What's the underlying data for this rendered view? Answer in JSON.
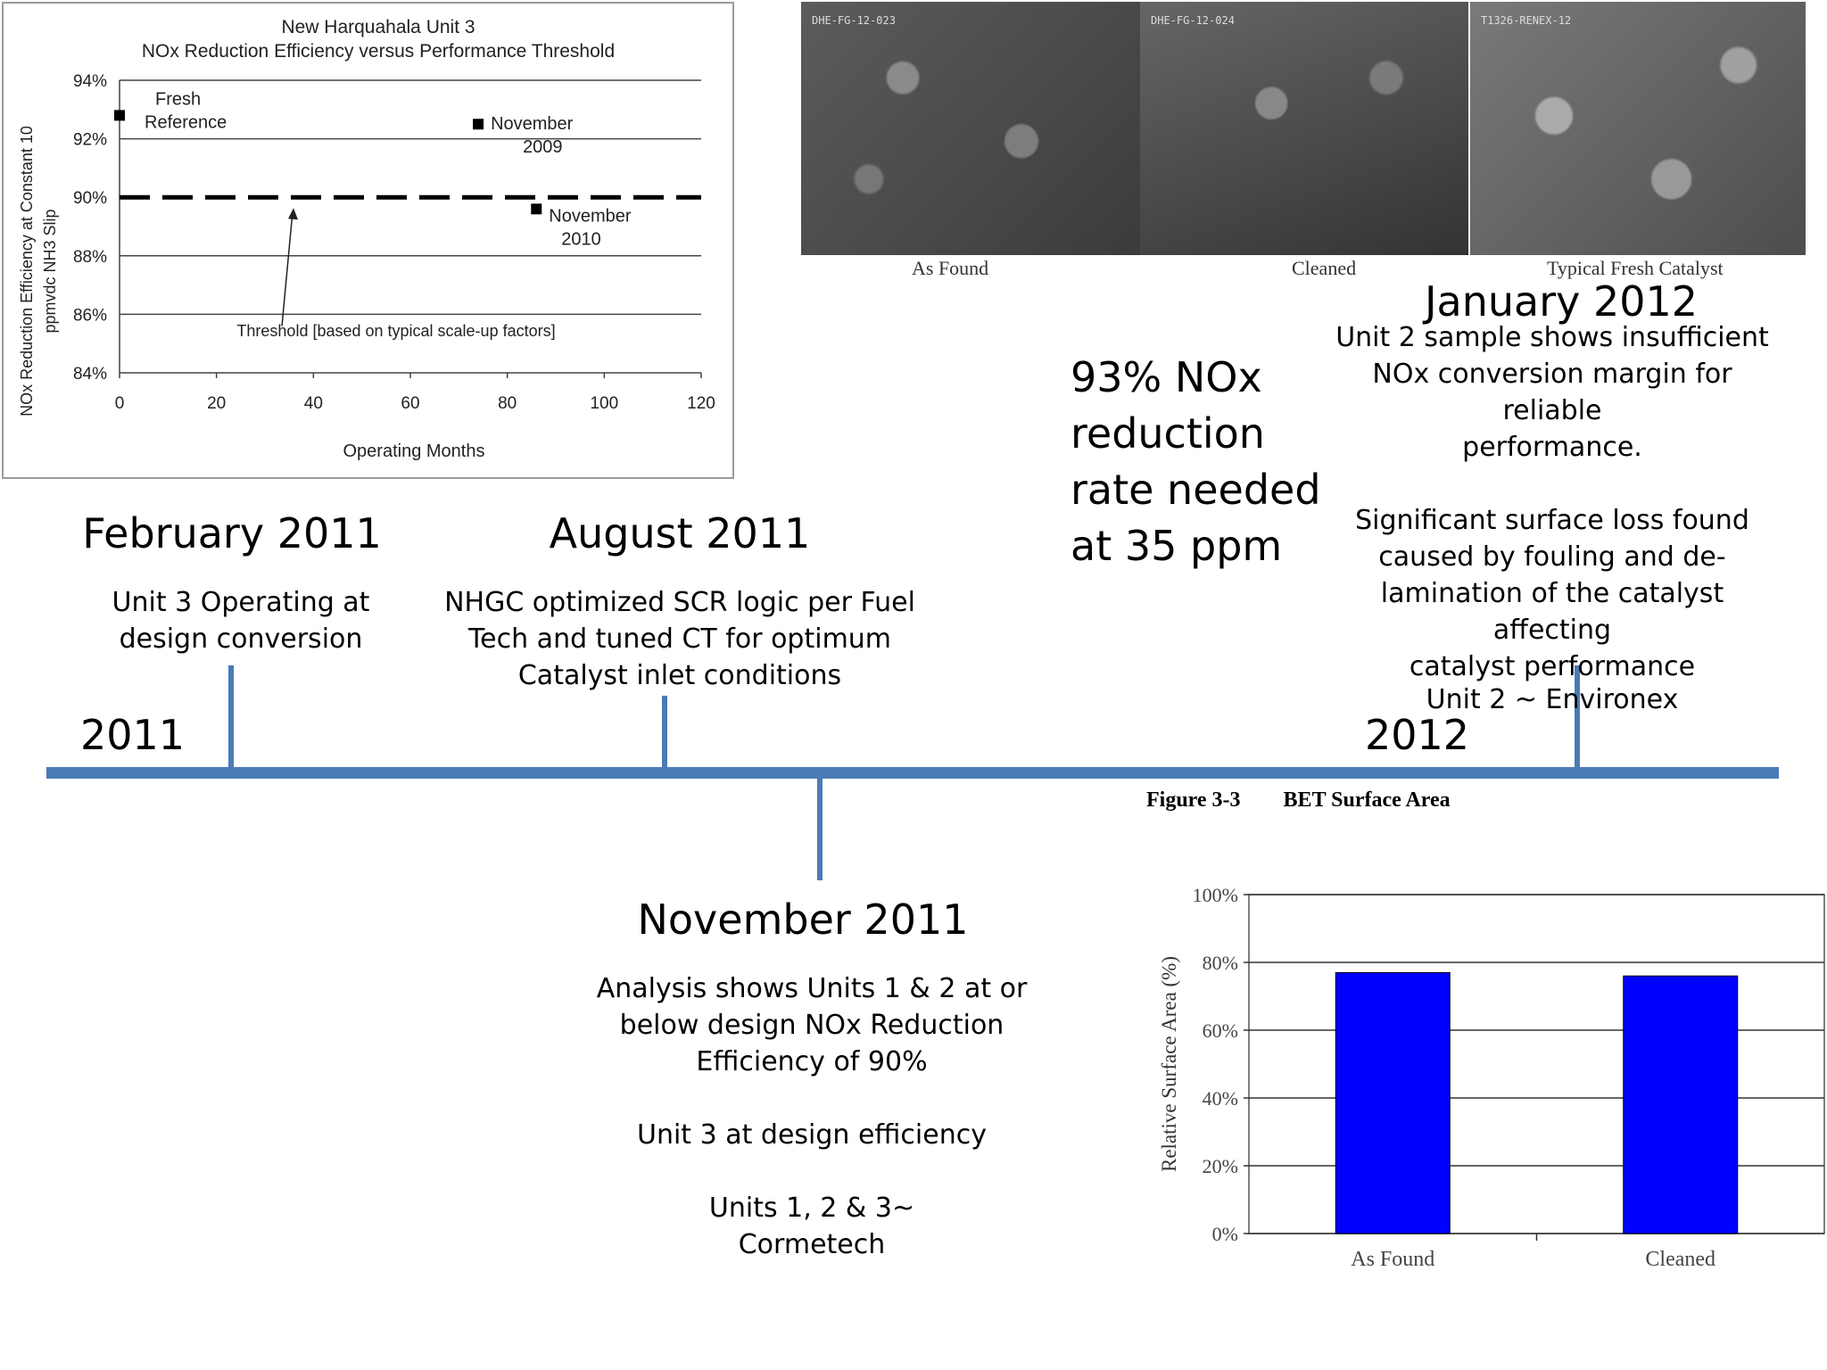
{
  "timeline": {
    "year_2011": "2011",
    "year_2012": "2012",
    "events": [
      {
        "date": "February 2011",
        "lines": [
          "Unit 3 Operating at",
          "design conversion"
        ]
      },
      {
        "date": "August 2011",
        "lines": [
          "NHGC optimized SCR logic per Fuel",
          "Tech and tuned CT for optimum",
          "Catalyst inlet conditions"
        ]
      },
      {
        "date": "November 2011",
        "lines": [
          "Analysis shows Units 1 & 2 at or",
          "below design NOx Reduction",
          "Efficiency of 90%",
          "",
          "Unit 3 at design efficiency",
          "",
          "Units 1, 2 & 3~",
          "Cormetech"
        ]
      },
      {
        "date": "January 2012",
        "lines": [
          "Unit 2 sample shows insufficient",
          "NOx conversion margin for reliable",
          "performance.",
          "",
          "Significant surface loss found",
          "caused by fouling and de-",
          "lamination of the catalyst affecting",
          "catalyst performance",
          "Unit 2 ~ Environex"
        ]
      }
    ]
  },
  "callout": {
    "lines": [
      "93% NOx",
      "reduction",
      "rate needed",
      "at 35 ppm"
    ]
  },
  "sem": {
    "labels": [
      "As Found",
      "Cleaned",
      "Typical Fresh Catalyst"
    ],
    "codes": [
      "DHE-FG-12-023",
      "DHE-FG-12-024",
      "T1326-RENEX-12"
    ]
  },
  "chart_data": [
    {
      "type": "scatter",
      "title": "New Harquahala Unit 3",
      "subtitle": "NOx Reduction Efficiency versus Performance Threshold",
      "xlabel": "Operating Months",
      "ylabel": [
        "NOx Reduction Efficiency at Constant 10",
        "ppmvdc NH3 Slip"
      ],
      "xlim": [
        0,
        120
      ],
      "ylim": [
        84,
        94
      ],
      "xticks": [
        "0",
        "20",
        "40",
        "60",
        "80",
        "100",
        "120"
      ],
      "yticks": [
        "84%",
        "86%",
        "88%",
        "90%",
        "92%",
        "94%"
      ],
      "points": [
        {
          "x": 0,
          "y": 92.8,
          "label": [
            "Fresh",
            "Reference"
          ]
        },
        {
          "x": 74,
          "y": 92.5,
          "label": [
            "November",
            "2009"
          ]
        },
        {
          "x": 86,
          "y": 89.6,
          "label": [
            "November",
            "2010"
          ]
        }
      ],
      "threshold": {
        "y": 90,
        "label": "Threshold [based on typical scale-up factors]"
      },
      "grid": true
    },
    {
      "type": "bar",
      "figure_label": "Figure 3-3",
      "title": "BET Surface Area",
      "ylabel": "Relative Surface Area (%)",
      "categories": [
        "As Found",
        "Cleaned"
      ],
      "values": [
        77,
        76
      ],
      "ylim": [
        0,
        100
      ],
      "yticks": [
        "0%",
        "20%",
        "40%",
        "60%",
        "80%",
        "100%"
      ],
      "bar_color": "#0000ff",
      "grid": true
    }
  ]
}
